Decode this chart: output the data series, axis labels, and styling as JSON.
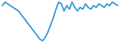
{
  "values": [
    5,
    7,
    6,
    5,
    4,
    3,
    2,
    0,
    -2,
    -4,
    -6,
    -8,
    -10,
    -12,
    -14,
    -15,
    -13,
    -10,
    -6,
    -2,
    3,
    7,
    6,
    2,
    5,
    3,
    7,
    4,
    2,
    4,
    3,
    6,
    4,
    3,
    5,
    4,
    6,
    5,
    4,
    6,
    5,
    7,
    6,
    5
  ],
  "line_color": "#3a9fd8",
  "line_width": 1.1,
  "background_color": "#ffffff"
}
